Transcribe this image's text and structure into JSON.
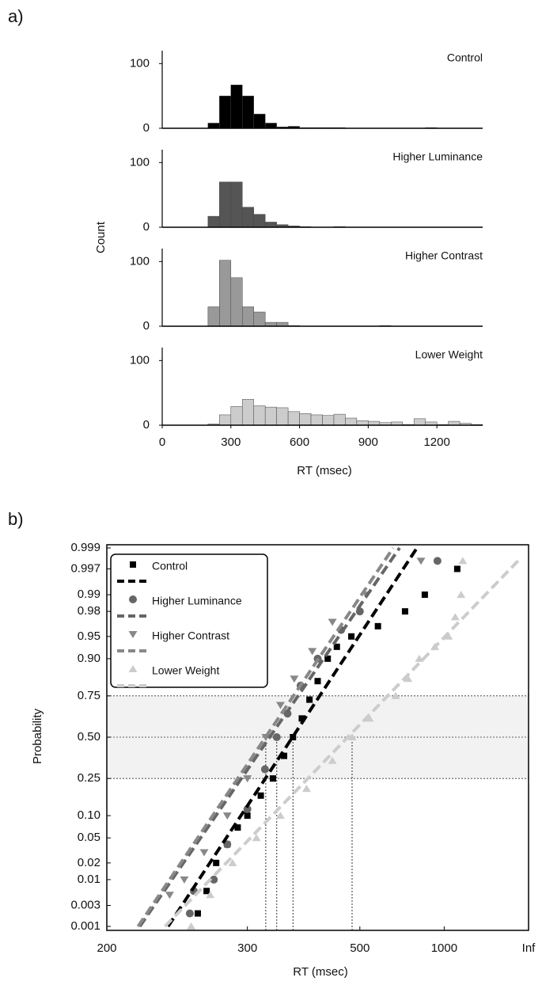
{
  "chart_data": [
    {
      "type": "histogram",
      "panel_label": "a)",
      "title": "Control",
      "ylabel": "Count",
      "color": "#000000",
      "bins": [
        200,
        250,
        300,
        350,
        400,
        450,
        500,
        550,
        600,
        650,
        700,
        750,
        800,
        850,
        900,
        950,
        1000,
        1050,
        1100,
        1150,
        1200,
        1250,
        1300,
        1350,
        1400
      ],
      "values": [
        8,
        50,
        67,
        50,
        22,
        8,
        2,
        3,
        1,
        1,
        1,
        1,
        0,
        0,
        0,
        0,
        0,
        0,
        0,
        1,
        0,
        0,
        0,
        0
      ],
      "xlim": [
        0,
        1400
      ],
      "ylim": [
        0,
        120
      ],
      "yticks": [
        0,
        100
      ]
    },
    {
      "type": "histogram",
      "title": "Higher Luminance",
      "color": "#555555",
      "bins": [
        200,
        250,
        300,
        350,
        400,
        450,
        500,
        550,
        600,
        650,
        700,
        750,
        800,
        850,
        900,
        950,
        1000,
        1050,
        1100,
        1150,
        1200,
        1250,
        1300,
        1350,
        1400
      ],
      "values": [
        17,
        70,
        70,
        31,
        20,
        8,
        4,
        2,
        1,
        0,
        0,
        1,
        0,
        0,
        0,
        0,
        0,
        0,
        0,
        0,
        0,
        0,
        0,
        0
      ],
      "xlim": [
        0,
        1400
      ],
      "ylim": [
        0,
        120
      ],
      "yticks": [
        0,
        100
      ]
    },
    {
      "type": "histogram",
      "title": "Higher Contrast",
      "color": "#999999",
      "bins": [
        200,
        250,
        300,
        350,
        400,
        450,
        500,
        550,
        600,
        650,
        700,
        750,
        800,
        850,
        900,
        950,
        1000,
        1050,
        1100,
        1150,
        1200,
        1250,
        1300,
        1350,
        1400
      ],
      "values": [
        30,
        102,
        75,
        30,
        22,
        6,
        6,
        1,
        0,
        0,
        0,
        0,
        0,
        0,
        0,
        1,
        0,
        0,
        0,
        0,
        0,
        0,
        0,
        0
      ],
      "xlim": [
        0,
        1400
      ],
      "ylim": [
        0,
        120
      ],
      "yticks": [
        0,
        100
      ]
    },
    {
      "type": "histogram",
      "title": "Lower Weight",
      "color": "#cccccc",
      "xlabel": "RT (msec)",
      "bins": [
        200,
        250,
        300,
        350,
        400,
        450,
        500,
        550,
        600,
        650,
        700,
        750,
        800,
        850,
        900,
        950,
        1000,
        1050,
        1100,
        1150,
        1200,
        1250,
        1300,
        1350,
        1400
      ],
      "values": [
        2,
        16,
        29,
        40,
        30,
        28,
        27,
        21,
        18,
        16,
        15,
        17,
        11,
        7,
        6,
        4,
        5,
        1,
        10,
        5,
        1,
        6,
        3,
        1
      ],
      "xlim": [
        0,
        1400
      ],
      "ylim": [
        0,
        120
      ],
      "yticks": [
        0,
        100
      ],
      "xticks": [
        0,
        300,
        600,
        900,
        1200
      ]
    },
    {
      "type": "probit",
      "panel_label": "b)",
      "xlabel": "RT (msec)",
      "ylabel": "Probability",
      "xscale": "reciprocal",
      "yscale": "probit",
      "legend": "upper left",
      "xlim": [
        200,
        null
      ],
      "xticks": [
        200,
        300,
        500,
        1000,
        {
          "value": null,
          "label": "Inf"
        }
      ],
      "ylim": [
        0.001,
        0.999
      ],
      "yticks": [
        0.001,
        0.003,
        0.01,
        0.02,
        0.05,
        {
          "value": 0.1,
          "label": "0.10"
        },
        0.25,
        {
          "value": 0.5,
          "label": "0.50"
        },
        0.75,
        {
          "value": 0.9,
          "label": "0.90"
        },
        0.95,
        0.98,
        0.99,
        0.997,
        0.999
      ],
      "band": [
        0.25,
        0.75
      ],
      "reference_lines": [
        0.25,
        0.5,
        0.75
      ],
      "series": [
        {
          "name": "Control",
          "color": "#000000",
          "marker": "square",
          "median": 358,
          "x": [
            255,
            262,
            270,
            280,
            290,
            300,
            315,
            330,
            345,
            358,
            372,
            385,
            400,
            420,
            440,
            476,
            560,
            683,
            813,
            1183
          ],
          "y": [
            0.002,
            0.006,
            0.02,
            0.04,
            0.07,
            0.1,
            0.17,
            0.25,
            0.38,
            0.5,
            0.62,
            0.73,
            0.82,
            0.9,
            0.93,
            0.95,
            0.965,
            0.98,
            0.99,
            0.997
          ],
          "fit": {
            "x": [
              234,
              756
            ],
            "y": [
              0.001,
              0.999
            ]
          }
        },
        {
          "name": "Higher Luminance",
          "color": "#666666",
          "marker": "circle",
          "median": 335,
          "x": [
            249,
            252,
            268,
            280,
            300,
            320,
            335,
            350,
            370,
            400,
            450,
            500,
            926
          ],
          "y": [
            0.002,
            0.006,
            0.01,
            0.04,
            0.12,
            0.3,
            0.5,
            0.65,
            0.8,
            0.9,
            0.96,
            0.98,
            0.998
          ],
          "fit": {
            "x": [
              217,
              654
            ],
            "y": [
              0.001,
              0.999
            ]
          }
        },
        {
          "name": "Higher Contrast",
          "color": "#888888",
          "marker": "triangle-down",
          "median": 321,
          "x": [
            235,
            245,
            260,
            280,
            300,
            321,
            340,
            360,
            390,
            430,
            520,
            784
          ],
          "y": [
            0.005,
            0.01,
            0.03,
            0.1,
            0.25,
            0.5,
            0.7,
            0.83,
            0.92,
            0.97,
            0.99,
            0.998
          ],
          "fit": {
            "x": [
              216,
              623
            ],
            "y": [
              0.001,
              0.999
            ]
          }
        },
        {
          "name": "Lower Weight",
          "color": "#cccccc",
          "marker": "triangle-up",
          "median": 478,
          "x": [
            250,
            265,
            285,
            310,
            340,
            380,
            430,
            478,
            530,
            635,
            700,
            772,
            900,
            1053,
            1150,
            1250,
            1282
          ],
          "y": [
            0.001,
            0.005,
            0.02,
            0.05,
            0.1,
            0.2,
            0.35,
            0.5,
            0.62,
            0.75,
            0.83,
            0.9,
            0.93,
            0.95,
            0.975,
            0.99,
            0.998
          ],
          "fit": {
            "x": [
              232,
              8000
            ],
            "y": [
              0.001,
              0.998
            ]
          }
        }
      ]
    }
  ]
}
